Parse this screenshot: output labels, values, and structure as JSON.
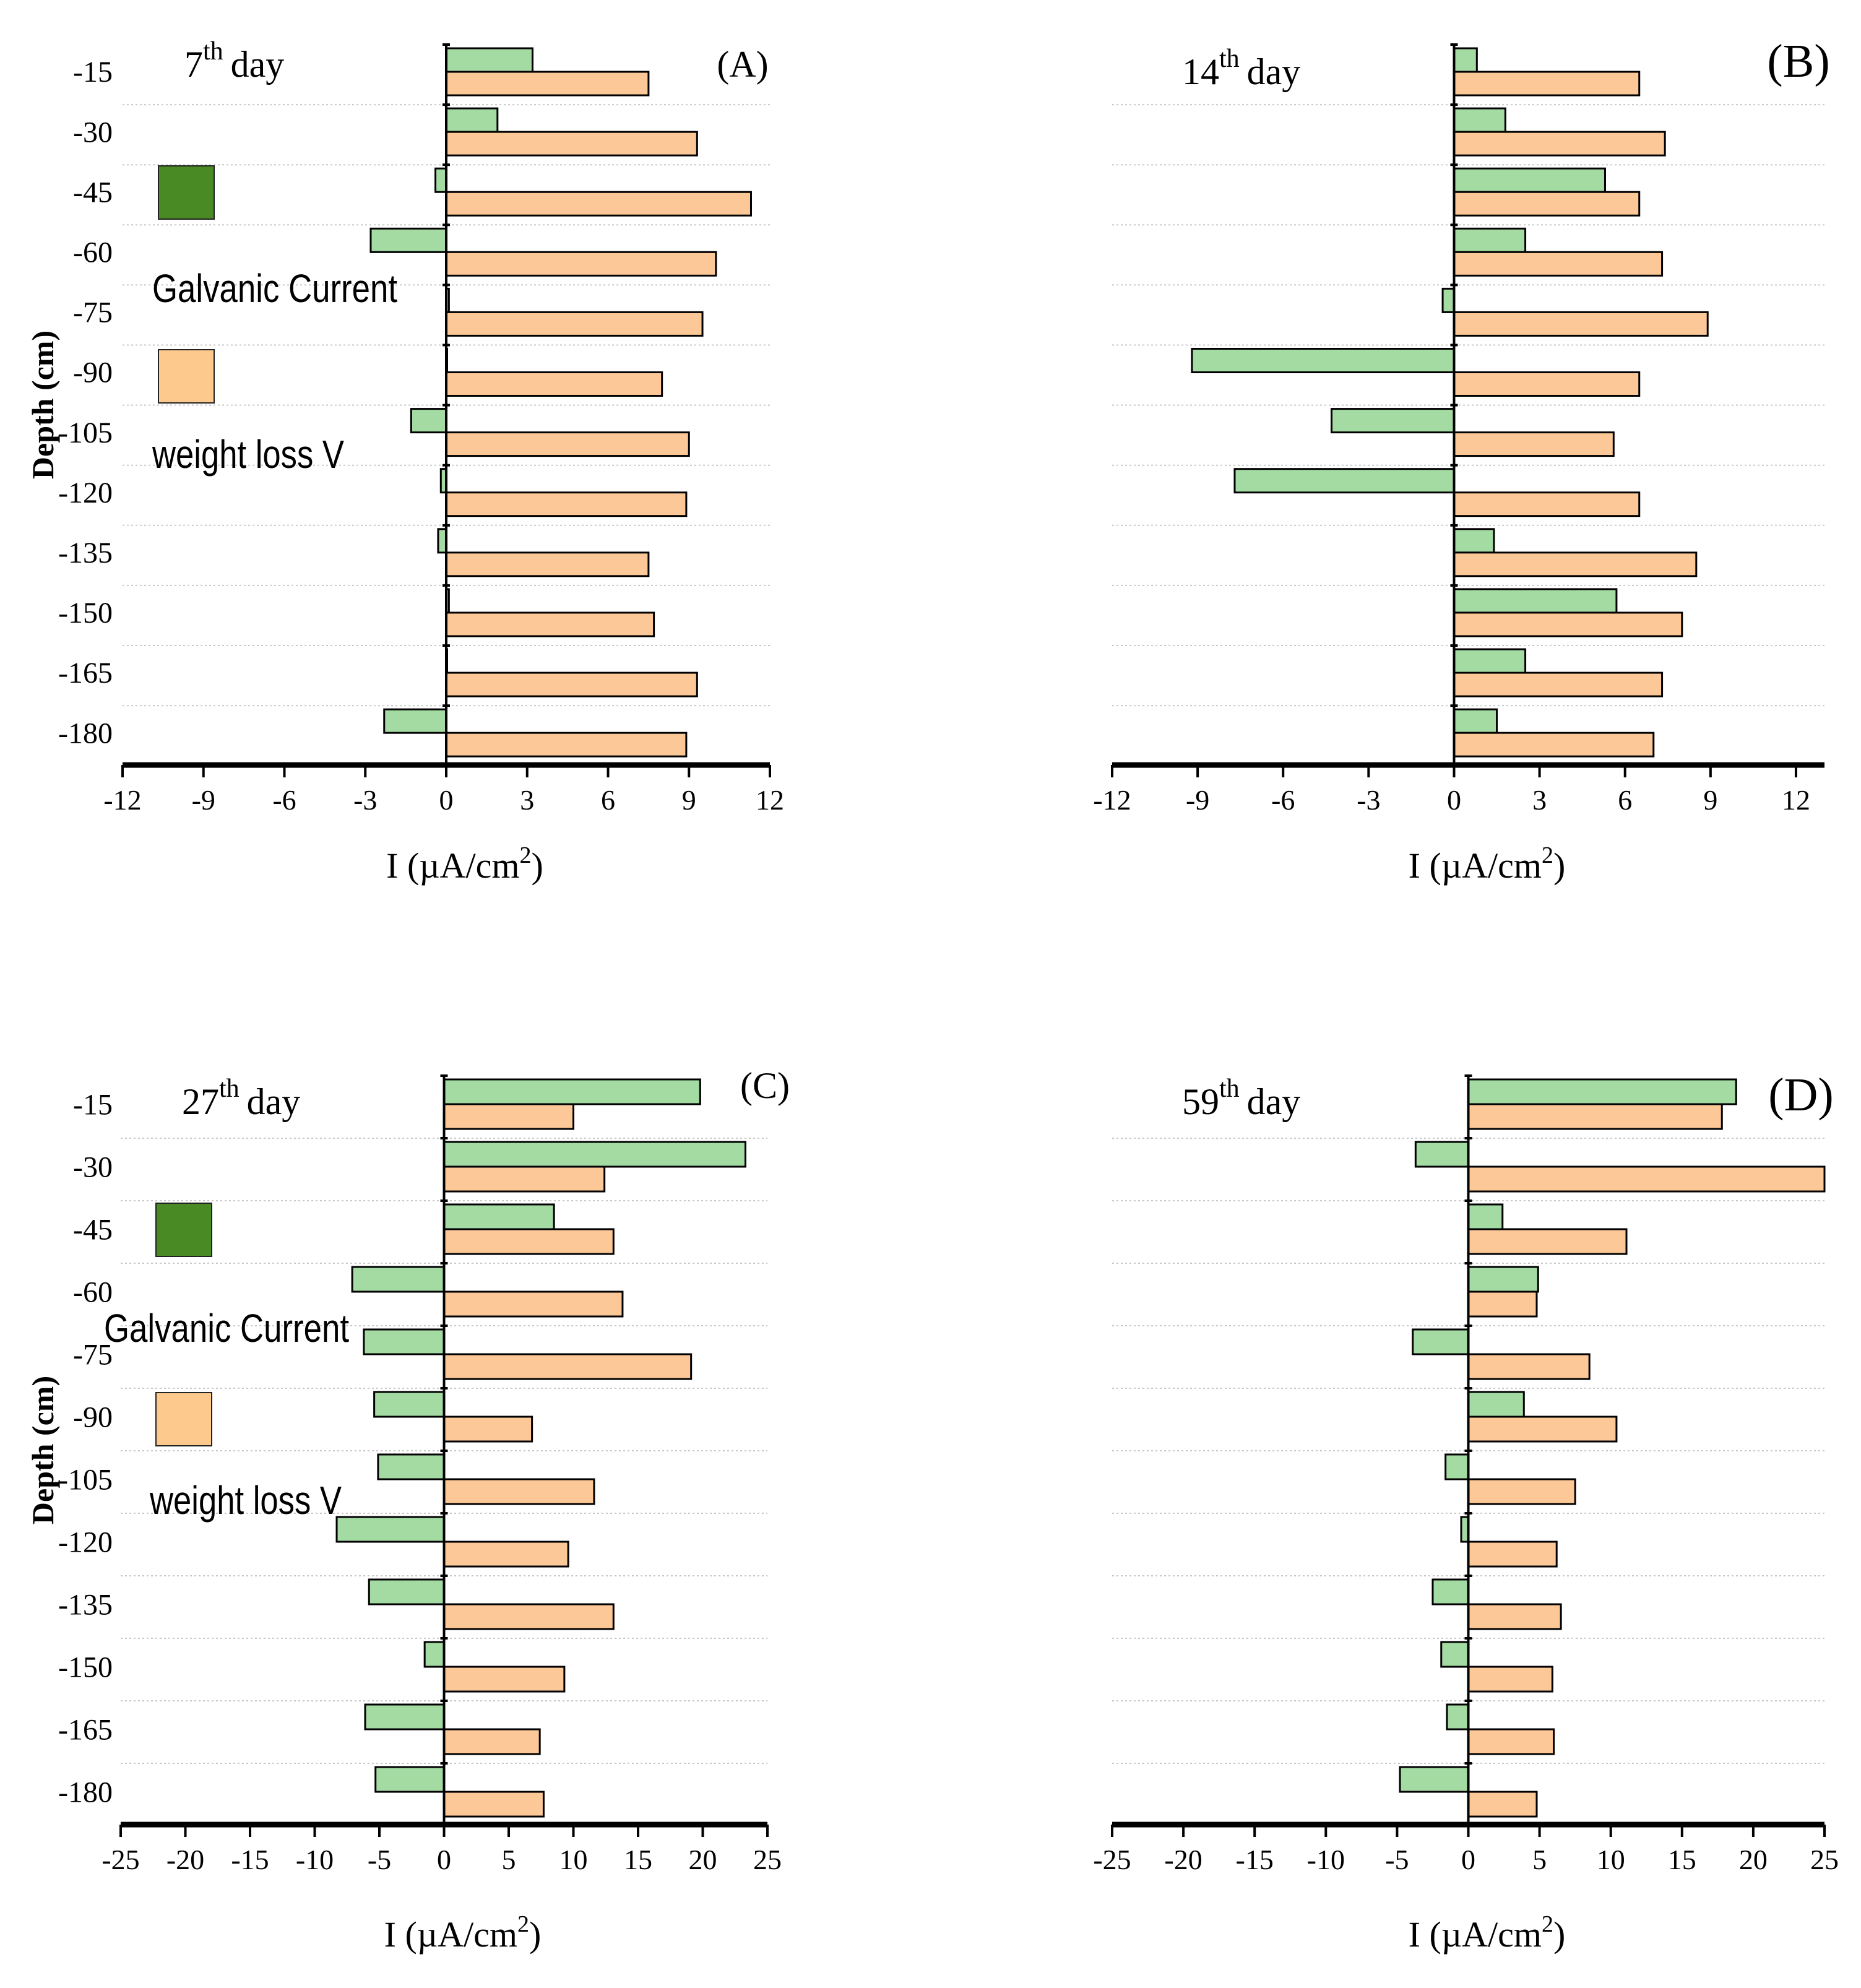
{
  "figure": {
    "y_axis_label": "Depth (cm)",
    "x_axis_label_main": "I (µA/cm",
    "x_axis_label_sup": "2",
    "x_axis_label_close": ")"
  },
  "legend": {
    "galvanic_label": "Galvanic Current",
    "weight_label": "weight loss V"
  },
  "colors": {
    "galvanic": "#a3dba3",
    "weight_loss": "#fdc898",
    "legend_galvanic": "#4a8a24",
    "legend_weight": "#fdc98d",
    "axis": "#000000",
    "grid": "#c8c8c8"
  },
  "chart_data": [
    {
      "type": "bar",
      "orientation": "horizontal",
      "panel_label": "(A)",
      "day_prefix": "7",
      "day_suffix": "th",
      "day_word": "day",
      "show_depth_labels": true,
      "show_legend": true,
      "categories": [
        "-15",
        "-30",
        "-45",
        "-60",
        "-75",
        "-90",
        "-105",
        "-120",
        "-135",
        "-150",
        "-165",
        "-180"
      ],
      "xlim": [
        -12,
        12
      ],
      "xticks": [
        -12,
        -9,
        -6,
        -3,
        0,
        3,
        6,
        9,
        12
      ],
      "series": [
        {
          "name": "Galvanic Current",
          "values": [
            3.2,
            1.9,
            -0.4,
            -2.8,
            0.1,
            0,
            -1.3,
            -0.2,
            -0.3,
            0.1,
            0,
            -2.3
          ]
        },
        {
          "name": "weight loss V",
          "values": [
            7.5,
            9.3,
            11.3,
            10.0,
            9.5,
            8.0,
            9.0,
            8.9,
            7.5,
            7.7,
            9.3,
            8.9
          ]
        }
      ]
    },
    {
      "type": "bar",
      "orientation": "horizontal",
      "panel_label": "(B)",
      "day_prefix": "14",
      "day_suffix": "th",
      "day_word": "day",
      "show_depth_labels": false,
      "show_legend": false,
      "categories": [
        "-15",
        "-30",
        "-45",
        "-60",
        "-75",
        "-90",
        "-105",
        "-120",
        "-135",
        "-150",
        "-165",
        "-180"
      ],
      "xlim": [
        -12,
        13
      ],
      "xticks": [
        -12,
        -9,
        -6,
        -3,
        0,
        3,
        6,
        9,
        12
      ],
      "series": [
        {
          "name": "Galvanic Current",
          "values": [
            0.8,
            1.8,
            5.3,
            2.5,
            -0.4,
            -9.2,
            -4.3,
            -7.7,
            1.4,
            5.7,
            2.5,
            1.5
          ]
        },
        {
          "name": "weight loss V",
          "values": [
            6.5,
            7.4,
            6.5,
            7.3,
            8.9,
            6.5,
            5.6,
            6.5,
            8.5,
            8.0,
            7.3,
            7.0
          ]
        }
      ]
    },
    {
      "type": "bar",
      "orientation": "horizontal",
      "panel_label": "(C)",
      "day_prefix": "27",
      "day_suffix": "th",
      "day_word": "day",
      "show_depth_labels": true,
      "show_legend": true,
      "categories": [
        "-15",
        "-30",
        "-45",
        "-60",
        "-75",
        "-90",
        "-105",
        "-120",
        "-135",
        "-150",
        "-165",
        "-180"
      ],
      "xlim": [
        -25,
        25
      ],
      "xticks": [
        -25,
        -20,
        -15,
        -10,
        -5,
        0,
        5,
        10,
        15,
        20,
        25
      ],
      "series": [
        {
          "name": "Galvanic Current",
          "values": [
            19.8,
            23.3,
            8.5,
            -7.1,
            -6.2,
            -5.4,
            -5.1,
            -8.3,
            -5.8,
            -1.5,
            -6.1,
            -5.3
          ]
        },
        {
          "name": "weight loss V",
          "values": [
            10.0,
            12.4,
            13.1,
            13.8,
            19.1,
            6.8,
            11.6,
            9.6,
            13.1,
            9.3,
            7.4,
            7.7
          ]
        }
      ]
    },
    {
      "type": "bar",
      "orientation": "horizontal",
      "panel_label": "(D)",
      "day_prefix": "59",
      "day_suffix": "th",
      "day_word": "day",
      "show_depth_labels": false,
      "show_legend": false,
      "categories": [
        "-15",
        "-30",
        "-45",
        "-60",
        "-75",
        "-90",
        "-105",
        "-120",
        "-135",
        "-150",
        "-165",
        "-180"
      ],
      "xlim": [
        -25,
        25
      ],
      "xticks": [
        -25,
        -20,
        -15,
        -10,
        -5,
        0,
        5,
        10,
        15,
        20,
        25
      ],
      "series": [
        {
          "name": "Galvanic Current",
          "values": [
            18.8,
            -3.7,
            2.4,
            4.9,
            -3.9,
            3.9,
            -1.6,
            -0.5,
            -2.5,
            -1.9,
            -1.5,
            -4.8
          ]
        },
        {
          "name": "weight loss V",
          "values": [
            17.8,
            25.0,
            11.1,
            4.8,
            8.5,
            10.4,
            7.5,
            6.2,
            6.5,
            5.9,
            6.0,
            4.8
          ]
        }
      ]
    }
  ]
}
